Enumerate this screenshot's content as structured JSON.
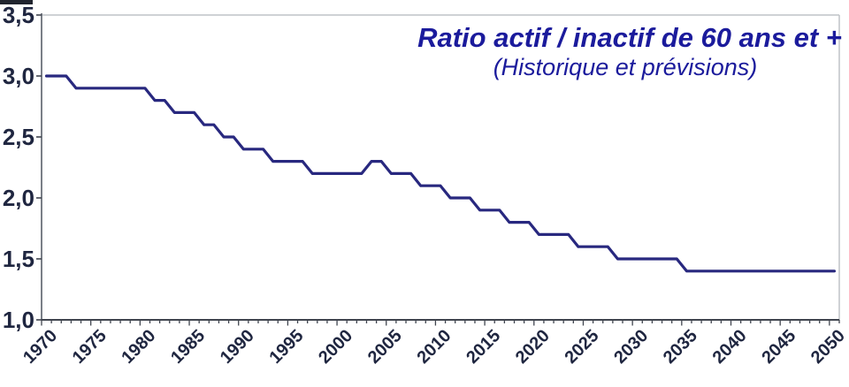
{
  "chart_data": {
    "type": "line",
    "title": "Ratio actif / inactif de 60 ans et +",
    "subtitle": "(Historique et prévisions)",
    "x_start_year": 1970,
    "x_end_year": 2050,
    "x_step": 1,
    "x_tick_label_years": [
      1970,
      1975,
      1980,
      1985,
      1990,
      1995,
      2000,
      2005,
      2010,
      2015,
      2020,
      2025,
      2030,
      2035,
      2040,
      2045,
      2050
    ],
    "y_ticks": [
      1.0,
      1.5,
      2.0,
      2.5,
      3.0,
      3.5
    ],
    "y_tick_labels": [
      "1,0",
      "1,5",
      "2,0",
      "2,5",
      "3,0",
      "3,5"
    ],
    "ylim": [
      1.0,
      3.5
    ],
    "grid": false,
    "legend": "none",
    "series": [
      {
        "values": [
          3.0,
          3.0,
          3.0,
          2.9,
          2.9,
          2.9,
          2.9,
          2.9,
          2.9,
          2.9,
          2.9,
          2.8,
          2.8,
          2.7,
          2.7,
          2.7,
          2.6,
          2.6,
          2.5,
          2.5,
          2.4,
          2.4,
          2.4,
          2.3,
          2.3,
          2.3,
          2.3,
          2.2,
          2.2,
          2.2,
          2.2,
          2.2,
          2.2,
          2.3,
          2.3,
          2.2,
          2.2,
          2.2,
          2.1,
          2.1,
          2.1,
          2.0,
          2.0,
          2.0,
          1.9,
          1.9,
          1.9,
          1.8,
          1.8,
          1.8,
          1.7,
          1.7,
          1.7,
          1.7,
          1.6,
          1.6,
          1.6,
          1.6,
          1.5,
          1.5,
          1.5,
          1.5,
          1.5,
          1.5,
          1.5,
          1.4,
          1.4,
          1.4,
          1.4,
          1.4,
          1.4,
          1.4,
          1.4,
          1.4,
          1.4,
          1.4,
          1.4,
          1.4,
          1.4,
          1.4,
          1.4
        ]
      }
    ],
    "colors": {
      "line": "#28287f",
      "title": "#1b1b9c",
      "axis_text": "#1f2640",
      "axis_line": "#7a7f87",
      "tick": "#40454f",
      "frame": "#bfc3c7"
    }
  }
}
